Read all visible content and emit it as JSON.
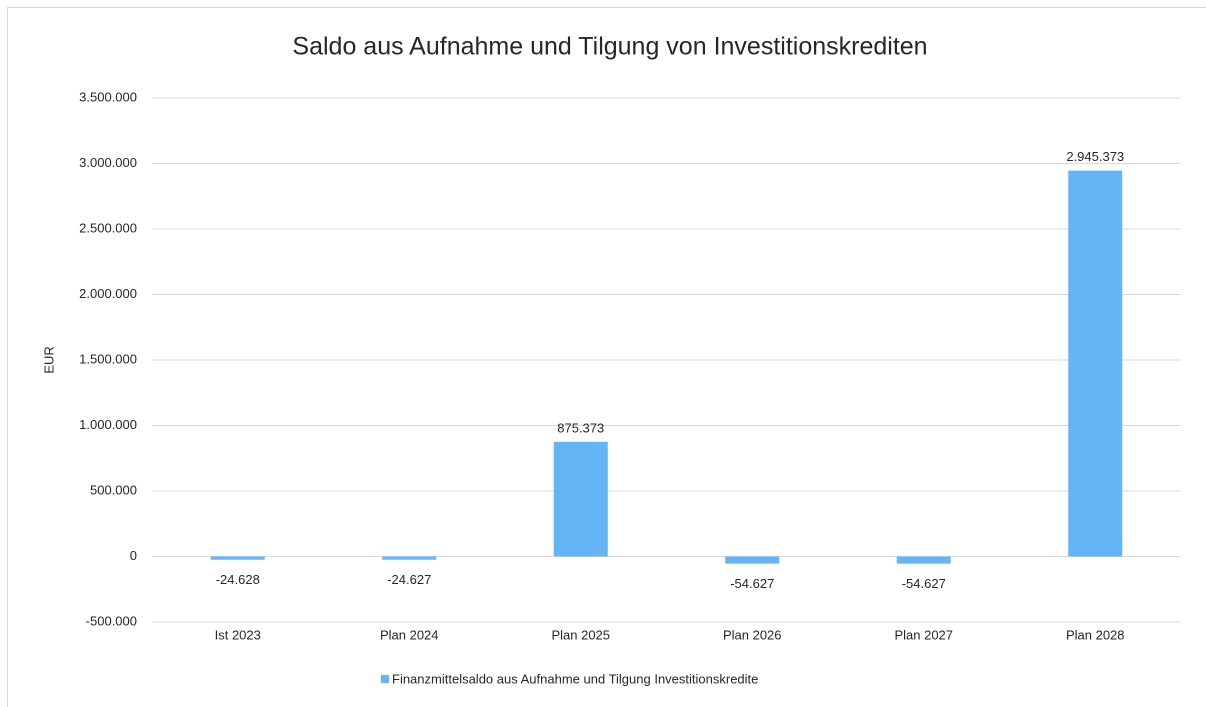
{
  "chart_data": {
    "type": "bar",
    "title": "Saldo aus Aufnahme und Tilgung von Investitionskrediten",
    "y_label": "EUR",
    "categories": [
      "Ist 2023",
      "Plan 2024",
      "Plan 2025",
      "Plan 2026",
      "Plan 2027",
      "Plan 2028"
    ],
    "series": [
      {
        "name": "Finanzmittelsaldo aus Aufnahme und Tilgung Investitionskredite",
        "color": "#64b5f6",
        "values": [
          -24628,
          -24627,
          875373,
          -54627,
          -54627,
          2945373
        ],
        "value_labels": [
          "-24.628",
          "-24.627",
          "875.373",
          "-54.627",
          "-54.627",
          "2.945.373"
        ]
      }
    ],
    "ylim": [
      -500000,
      3500000
    ],
    "yticks": [
      {
        "value": -500000,
        "label": "-500.000"
      },
      0,
      {
        "value": 500000,
        "label": "500.000"
      },
      {
        "value": 1000000,
        "label": "1.000.000"
      },
      {
        "value": 1500000,
        "label": "1.500.000"
      },
      {
        "value": 2000000,
        "label": "2.000.000"
      },
      {
        "value": 2500000,
        "label": "2.500.000"
      },
      {
        "value": 3000000,
        "label": "3.000.000"
      },
      {
        "value": 3500000,
        "label": "3.500.000"
      }
    ],
    "grid": true,
    "legend": "bottom"
  }
}
